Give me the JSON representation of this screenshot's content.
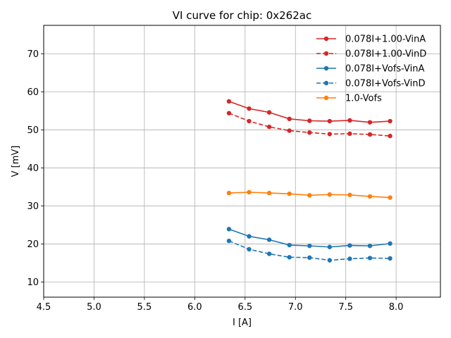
{
  "chart_data": {
    "type": "line",
    "title": "VI curve for chip: 0x262ac",
    "xlabel": "I [A]",
    "ylabel": "V [mV]",
    "xlim": [
      4.5,
      8.44
    ],
    "ylim": [
      6,
      77.5
    ],
    "xticks": [
      "4.5",
      "5.0",
      "5.5",
      "6.0",
      "6.5",
      "7.0",
      "7.5",
      "8.0"
    ],
    "yticks": [
      "10",
      "20",
      "30",
      "40",
      "50",
      "60",
      "70"
    ],
    "grid": true,
    "legend_position": "top-right",
    "x": [
      6.34,
      6.54,
      6.74,
      6.94,
      7.14,
      7.34,
      7.54,
      7.74,
      7.94
    ],
    "series": [
      {
        "name": "0.078I+1.00-VinA",
        "color": "#d62728",
        "dash": "solid",
        "values": [
          57.5,
          55.6,
          54.6,
          52.9,
          52.4,
          52.3,
          52.5,
          52.0,
          52.3
        ]
      },
      {
        "name": "0.078I+1.00-VinD",
        "color": "#d62728",
        "dash": "dashed",
        "values": [
          54.4,
          52.3,
          50.8,
          49.8,
          49.3,
          48.9,
          49.0,
          48.8,
          48.4
        ]
      },
      {
        "name": "0.078I+Vofs-VinA",
        "color": "#1f77b4",
        "dash": "solid",
        "values": [
          23.9,
          22.0,
          21.1,
          19.7,
          19.5,
          19.2,
          19.6,
          19.5,
          20.1
        ]
      },
      {
        "name": "0.078I+Vofs-VinD",
        "color": "#1f77b4",
        "dash": "dashed",
        "values": [
          20.8,
          18.6,
          17.4,
          16.5,
          16.4,
          15.7,
          16.1,
          16.3,
          16.2
        ]
      },
      {
        "name": "1.0-Vofs",
        "color": "#ff7f0e",
        "dash": "solid",
        "values": [
          33.4,
          33.6,
          33.4,
          33.2,
          32.8,
          33.0,
          32.9,
          32.5,
          32.2
        ]
      }
    ]
  }
}
